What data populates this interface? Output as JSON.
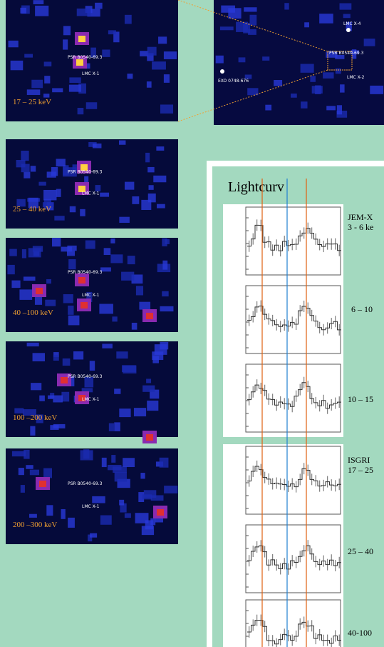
{
  "sky_maps": [
    {
      "energy_label": "17 – 25 keV",
      "sources": [
        "PSR B0540-69.3",
        "LMC X-1"
      ]
    },
    {
      "energy_label": "25 – 40 keV",
      "sources": [
        "PSR B0540-69.3",
        "LMC X-1"
      ]
    },
    {
      "energy_label": "40 –100 keV",
      "sources": [
        "PSR B0540-69.3",
        "LMC X-1"
      ]
    },
    {
      "energy_label": "100 –200 keV",
      "sources": [
        "PSR B0540-69.3",
        "LMC X-1"
      ]
    },
    {
      "energy_label": "200 –300 keV",
      "sources": [
        "PSR B0540-69.3",
        "LMC X-1"
      ]
    }
  ],
  "overview_map": {
    "sources": [
      "LMC X-4",
      "PSR B0540-69.3",
      "EXO 0748-676",
      "LMC X-2"
    ]
  },
  "lightcurves": {
    "title": "Lightcurv",
    "instruments": [
      {
        "name": "JEM-X",
        "bands": [
          "3 - 6 ke",
          "6 – 10",
          "10 – 15"
        ]
      },
      {
        "name": "ISGRI",
        "bands": [
          "17 – 25",
          "25 – 40",
          "40-100"
        ]
      }
    ]
  }
}
